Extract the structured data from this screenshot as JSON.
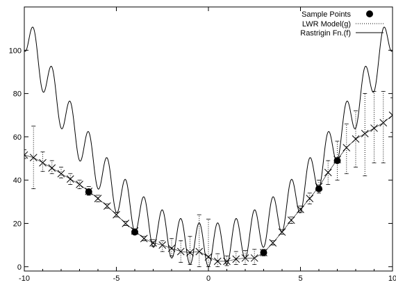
{
  "chart_data": {
    "type": "line",
    "title": "",
    "xlabel": "",
    "ylabel": "",
    "xlim": [
      -10,
      10
    ],
    "ylim": [
      -2,
      120
    ],
    "x_ticks": [
      -10,
      -5,
      0,
      5,
      10
    ],
    "x_tick_labels": [
      "-10",
      "-5",
      "0",
      "5",
      "10"
    ],
    "y_ticks": [
      0,
      20,
      40,
      60,
      80,
      100
    ],
    "y_tick_labels": [
      "0",
      "20",
      "40",
      "60",
      "80",
      "100"
    ],
    "grid": false,
    "legend_position": "top-right",
    "legend": [
      {
        "label": "Sample Points",
        "style": "filled-circle"
      },
      {
        "label": "LWR Model(g)",
        "style": "dotted"
      },
      {
        "label": "Rastrigin Fn.(f)",
        "style": "solid"
      }
    ],
    "series": [
      {
        "name": "Rastrigin Fn.(f)",
        "kind": "function",
        "formula": "x^2 + 10*(1 - cos(2*pi*x))",
        "x_range": [
          -10,
          10
        ],
        "style": "solid"
      },
      {
        "name": "LWR Model(g)",
        "kind": "errorbars",
        "style": "dotted",
        "marker": "cross",
        "points": [
          {
            "x": -10.0,
            "y": 51.6,
            "low": 50,
            "high": 54
          },
          {
            "x": -9.5,
            "y": 50.4,
            "low": 36,
            "high": 65
          },
          {
            "x": -9.0,
            "y": 48.0,
            "low": 44,
            "high": 53
          },
          {
            "x": -8.5,
            "y": 45.6,
            "low": 43,
            "high": 49
          },
          {
            "x": -8.0,
            "y": 43.0,
            "low": 41,
            "high": 46
          },
          {
            "x": -7.5,
            "y": 40.5,
            "low": 38,
            "high": 43
          },
          {
            "x": -7.0,
            "y": 38.0,
            "low": 36,
            "high": 40
          },
          {
            "x": -6.5,
            "y": 34.8,
            "low": 33,
            "high": 37
          },
          {
            "x": -6.0,
            "y": 31.5,
            "low": 30,
            "high": 33
          },
          {
            "x": -5.5,
            "y": 28.0,
            "low": 27,
            "high": 29
          },
          {
            "x": -5.0,
            "y": 24.0,
            "low": 23,
            "high": 25
          },
          {
            "x": -4.5,
            "y": 20.0,
            "low": 19,
            "high": 21
          },
          {
            "x": -4.0,
            "y": 16.5,
            "low": 15.5,
            "high": 17.5
          },
          {
            "x": -3.5,
            "y": 13.0,
            "low": 12,
            "high": 14
          },
          {
            "x": -3.0,
            "y": 11.0,
            "low": 9.5,
            "high": 12.5
          },
          {
            "x": -2.5,
            "y": 10.0,
            "low": 7,
            "high": 12
          },
          {
            "x": -2.0,
            "y": 8.5,
            "low": 5,
            "high": 13
          },
          {
            "x": -1.5,
            "y": 7.0,
            "low": 2,
            "high": 12
          },
          {
            "x": -1.0,
            "y": 6.5,
            "low": 1,
            "high": 14
          },
          {
            "x": -0.5,
            "y": 7.0,
            "low": 0,
            "high": 24
          },
          {
            "x": 0.0,
            "y": 4.5,
            "low": 0,
            "high": 22
          },
          {
            "x": 0.5,
            "y": 2.5,
            "low": 0,
            "high": 6
          },
          {
            "x": 1.0,
            "y": 2.5,
            "low": 0.5,
            "high": 5
          },
          {
            "x": 1.5,
            "y": 3.5,
            "low": 1,
            "high": 7
          },
          {
            "x": 2.0,
            "y": 4.0,
            "low": 1,
            "high": 7.5
          },
          {
            "x": 2.5,
            "y": 4.0,
            "low": 1,
            "high": 8
          },
          {
            "x": 3.0,
            "y": 6.5,
            "low": 5,
            "high": 8
          },
          {
            "x": 3.5,
            "y": 11.0,
            "low": 10,
            "high": 12
          },
          {
            "x": 4.0,
            "y": 16.0,
            "low": 15,
            "high": 17
          },
          {
            "x": 4.5,
            "y": 21.5,
            "low": 20,
            "high": 23
          },
          {
            "x": 5.0,
            "y": 26.5,
            "low": 25,
            "high": 28
          },
          {
            "x": 5.5,
            "y": 31.5,
            "low": 29,
            "high": 34
          },
          {
            "x": 6.0,
            "y": 37.0,
            "low": 34,
            "high": 40
          },
          {
            "x": 6.5,
            "y": 43.5,
            "low": 38,
            "high": 49
          },
          {
            "x": 7.0,
            "y": 49.5,
            "low": 40,
            "high": 58
          },
          {
            "x": 7.5,
            "y": 55.0,
            "low": 43,
            "high": 66
          },
          {
            "x": 8.0,
            "y": 59.0,
            "low": 46,
            "high": 72
          },
          {
            "x": 8.5,
            "y": 61.5,
            "low": 42,
            "high": 80
          },
          {
            "x": 9.0,
            "y": 64.0,
            "low": 48,
            "high": 81
          },
          {
            "x": 9.5,
            "y": 66.5,
            "low": 48,
            "high": 81
          },
          {
            "x": 10.0,
            "y": 70.0,
            "low": 62,
            "high": 78
          }
        ]
      },
      {
        "name": "Sample Points",
        "kind": "points",
        "marker": "filled-circle",
        "points": [
          {
            "x": -6.5,
            "y": 34.6
          },
          {
            "x": -4.0,
            "y": 16.0
          },
          {
            "x": 3.0,
            "y": 6.5
          },
          {
            "x": 6.0,
            "y": 36.0
          },
          {
            "x": 7.0,
            "y": 49.0
          }
        ]
      }
    ]
  }
}
